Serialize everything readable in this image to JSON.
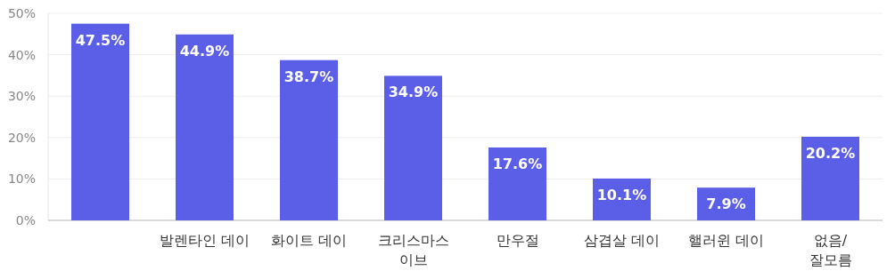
{
  "chart_data": {
    "type": "bar",
    "categories": [
      null,
      "발렌타인 데이",
      "화이트 데이",
      "크리스마스\n이브",
      "만우절",
      "삼겹살 데이",
      "핼러윈 데이",
      "없음/\n잘모름"
    ],
    "values": [
      47.5,
      44.9,
      38.7,
      34.9,
      17.6,
      10.1,
      7.9,
      20.2
    ],
    "value_labels": [
      "47.5%",
      "44.9%",
      "38.7%",
      "34.9%",
      "17.6%",
      "10.1%",
      "7.9%",
      "20.2%"
    ],
    "color": "#5b5ee6",
    "ylim": [
      0,
      50
    ],
    "yticks": [
      {
        "value": 0,
        "label": "0%"
      },
      {
        "value": 10,
        "label": "10%"
      },
      {
        "value": 20,
        "label": "20%"
      },
      {
        "value": 30,
        "label": "30%"
      },
      {
        "value": 40,
        "label": "40%"
      },
      {
        "value": 50,
        "label": "50%"
      }
    ],
    "grid": "y"
  }
}
